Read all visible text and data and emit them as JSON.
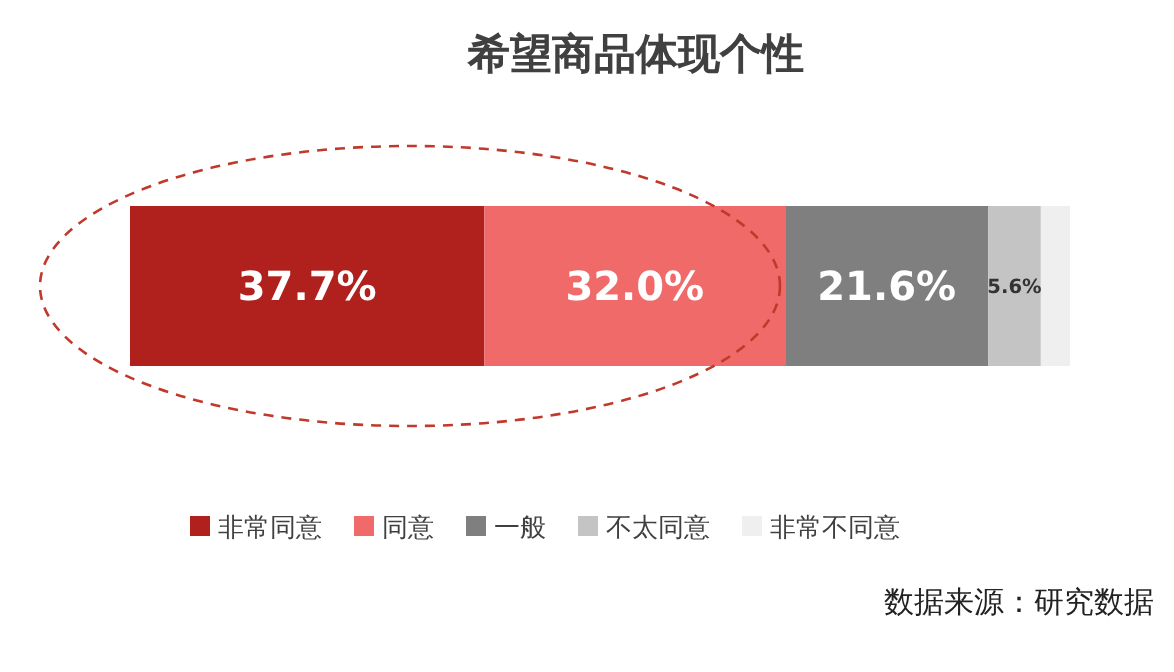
{
  "chart_data": {
    "type": "bar",
    "orientation": "horizontal",
    "stacked": true,
    "title": "希望商品体现个性",
    "categories": [
      null
    ],
    "xlim": [
      0,
      100
    ],
    "legend": "bottom",
    "annotations": [
      "数据来源：研究数据"
    ],
    "series": [
      {
        "name": "非常同意",
        "color": "#b0201c",
        "values": [
          37.7
        ],
        "value_labels": [
          "37.7%"
        ]
      },
      {
        "name": "同意",
        "color": "#f06a6a",
        "values": [
          32.0
        ],
        "value_labels": [
          "32.0%"
        ]
      },
      {
        "name": "一般",
        "color": "#7f7f7f",
        "values": [
          21.6
        ],
        "value_labels": [
          "21.6%"
        ]
      },
      {
        "name": "不太同意",
        "color": "#c4c4c4",
        "values": [
          5.6
        ],
        "value_labels": [
          "5.6%"
        ]
      },
      {
        "name": "非常不同意",
        "color": "#efefef",
        "values": [
          3.1
        ],
        "value_labels": [
          null
        ]
      }
    ]
  }
}
